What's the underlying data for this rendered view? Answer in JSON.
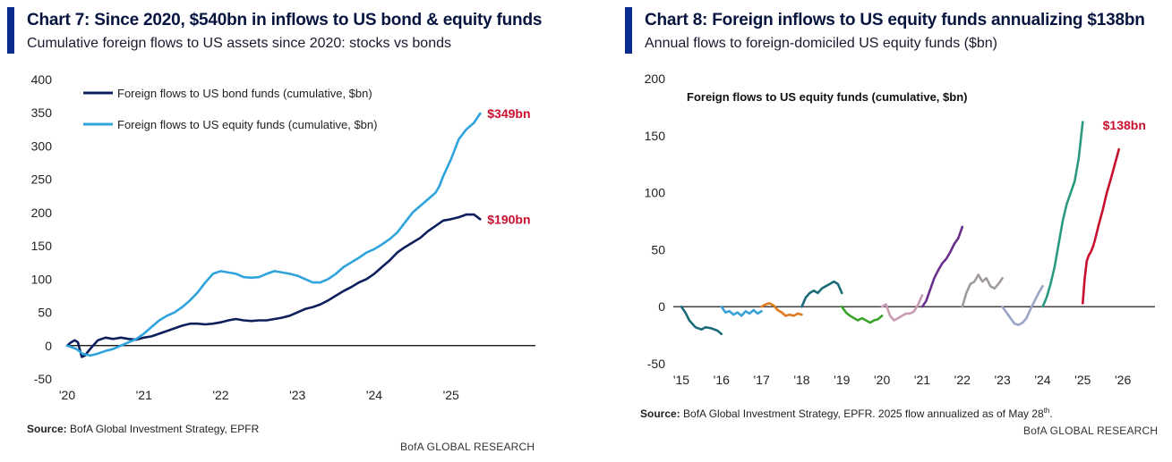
{
  "left": {
    "title": "Chart 7: Since 2020, $540bn in inflows to US bond & equity funds",
    "subtitle": "Cumulative foreign flows to US assets since 2020: stocks vs bonds",
    "source_label": "Source:",
    "source_text": " BofA Global Investment Strategy, EPFR",
    "brand": "BofA GLOBAL RESEARCH",
    "colors": {
      "bond": "#0c1f5c",
      "equity": "#2fa3dc",
      "annotation": "#c8102e",
      "axis": "#000000"
    }
  },
  "right": {
    "title": "Chart 8: Foreign inflows to US equity funds annualizing $138bn",
    "subtitle": "Annual flows to foreign-domiciled US equity funds ($bn)",
    "source_label": "Source:",
    "source_text": " BofA Global Investment Strategy, EPFR. 2025 flow annualized as of May 28",
    "source_sup": "th",
    "source_end": ".",
    "brand": "BofA GLOBAL RESEARCH",
    "colors": {
      "annotation": "#c8102e",
      "axis": "#000000"
    }
  },
  "chart_data": [
    {
      "type": "line",
      "title": "Chart 7: Since 2020, $540bn in inflows to US bond & equity funds",
      "subtitle": "Cumulative foreign flows to US assets since 2020: stocks vs bonds",
      "x_ticks": [
        "'20",
        "'21",
        "'22",
        "'23",
        "'24",
        "'25"
      ],
      "x_tick_values": [
        2020,
        2021,
        2022,
        2023,
        2024,
        2025
      ],
      "xlim": [
        2020,
        2026.1
      ],
      "y_ticks": [
        400,
        350,
        300,
        250,
        200,
        150,
        100,
        50,
        0,
        -50
      ],
      "ylim": [
        -50,
        400
      ],
      "grid": false,
      "legend_position": "top-left",
      "series": [
        {
          "name": "Foreign flows to US bond funds (cumulative, $bn)",
          "color": "#0c1f5c",
          "x": [
            2020.0,
            2020.05,
            2020.1,
            2020.14,
            2020.19,
            2020.23,
            2020.3,
            2020.4,
            2020.5,
            2020.6,
            2020.7,
            2020.8,
            2020.9,
            2021.0,
            2021.1,
            2021.2,
            2021.3,
            2021.4,
            2021.5,
            2021.6,
            2021.7,
            2021.8,
            2021.9,
            2022.0,
            2022.1,
            2022.2,
            2022.3,
            2022.4,
            2022.5,
            2022.6,
            2022.7,
            2022.8,
            2022.9,
            2023.0,
            2023.1,
            2023.2,
            2023.3,
            2023.4,
            2023.5,
            2023.6,
            2023.7,
            2023.8,
            2023.9,
            2024.0,
            2024.1,
            2024.2,
            2024.3,
            2024.4,
            2024.5,
            2024.6,
            2024.7,
            2024.8,
            2024.9,
            2025.0,
            2025.1,
            2025.2,
            2025.3,
            2025.38
          ],
          "y": [
            0,
            5,
            8,
            5,
            -17,
            -15,
            -5,
            8,
            12,
            10,
            12,
            10,
            9,
            12,
            14,
            18,
            22,
            26,
            30,
            33,
            33,
            32,
            33,
            35,
            38,
            40,
            38,
            37,
            38,
            38,
            40,
            42,
            45,
            50,
            55,
            58,
            62,
            68,
            75,
            82,
            88,
            95,
            100,
            108,
            118,
            128,
            140,
            148,
            155,
            162,
            172,
            180,
            188,
            190,
            193,
            197,
            197,
            190
          ]
        },
        {
          "name": "Foreign flows to US equity funds (cumulative, $bn)",
          "color": "#2fa3dc",
          "x": [
            2020.0,
            2020.05,
            2020.12,
            2020.2,
            2020.3,
            2020.4,
            2020.5,
            2020.6,
            2020.7,
            2020.8,
            2020.9,
            2021.0,
            2021.1,
            2021.2,
            2021.3,
            2021.4,
            2021.5,
            2021.6,
            2021.7,
            2021.8,
            2021.9,
            2022.0,
            2022.1,
            2022.2,
            2022.3,
            2022.4,
            2022.5,
            2022.6,
            2022.7,
            2022.8,
            2022.9,
            2023.0,
            2023.1,
            2023.2,
            2023.3,
            2023.4,
            2023.5,
            2023.6,
            2023.7,
            2023.8,
            2023.9,
            2024.0,
            2024.1,
            2024.2,
            2024.3,
            2024.4,
            2024.5,
            2024.6,
            2024.7,
            2024.8,
            2024.85,
            2024.9,
            2025.0,
            2025.1,
            2025.2,
            2025.3,
            2025.38
          ],
          "y": [
            0,
            -2,
            -5,
            -12,
            -15,
            -12,
            -8,
            -5,
            0,
            5,
            10,
            18,
            28,
            38,
            45,
            50,
            58,
            68,
            80,
            95,
            108,
            112,
            110,
            108,
            103,
            102,
            103,
            108,
            112,
            110,
            108,
            105,
            100,
            95,
            95,
            100,
            108,
            118,
            125,
            132,
            140,
            145,
            152,
            160,
            170,
            185,
            200,
            210,
            220,
            230,
            240,
            255,
            280,
            310,
            325,
            335,
            349
          ]
        }
      ],
      "annotations": [
        {
          "text": "$349bn",
          "x": 2025.38,
          "y": 349
        },
        {
          "text": "$190bn",
          "x": 2025.38,
          "y": 190
        }
      ]
    },
    {
      "type": "line",
      "title": "Chart 8: Foreign inflows to US equity funds annualizing $138bn",
      "subtitle": "Annual flows to foreign-domiciled US equity funds ($bn)",
      "inner_label": "Foreign flows to US equity funds (cumulative, $bn)",
      "x_ticks": [
        "'15",
        "'16",
        "'17",
        "'18",
        "'19",
        "'20",
        "'21",
        "'22",
        "'23",
        "'24",
        "'25",
        "'26"
      ],
      "x_tick_values": [
        2015,
        2016,
        2017,
        2018,
        2019,
        2020,
        2021,
        2022,
        2023,
        2024,
        2025,
        2026
      ],
      "xlim": [
        2014.8,
        2026.8
      ],
      "y_ticks": [
        200,
        150,
        100,
        50,
        0,
        -50
      ],
      "ylim": [
        -50,
        200
      ],
      "grid": false,
      "series": [
        {
          "color": "#1b6b7a",
          "x": [
            2015.0,
            2015.1,
            2015.2,
            2015.35,
            2015.5,
            2015.6,
            2015.75,
            2015.9,
            2016.0
          ],
          "y": [
            0,
            -5,
            -12,
            -18,
            -20,
            -18,
            -19,
            -21,
            -24
          ]
        },
        {
          "color": "#3aa0d8",
          "x": [
            2016.0,
            2016.1,
            2016.2,
            2016.3,
            2016.4,
            2016.5,
            2016.6,
            2016.7,
            2016.8,
            2016.9,
            2017.0
          ],
          "y": [
            0,
            -5,
            -4,
            -7,
            -5,
            -8,
            -4,
            -6,
            -3,
            -6,
            -4
          ]
        },
        {
          "color": "#e07a1f",
          "x": [
            2017.0,
            2017.1,
            2017.2,
            2017.3,
            2017.4,
            2017.5,
            2017.6,
            2017.7,
            2017.8,
            2017.9,
            2018.0
          ],
          "y": [
            0,
            2,
            3,
            1,
            -3,
            -5,
            -8,
            -7,
            -8,
            -6,
            -7
          ]
        },
        {
          "color": "#1b6b7a",
          "x": [
            2018.0,
            2018.1,
            2018.2,
            2018.3,
            2018.4,
            2018.5,
            2018.6,
            2018.7,
            2018.8,
            2018.9,
            2019.0
          ],
          "y": [
            0,
            8,
            12,
            14,
            12,
            16,
            18,
            20,
            22,
            20,
            12
          ]
        },
        {
          "color": "#3aa32a",
          "x": [
            2019.0,
            2019.1,
            2019.2,
            2019.3,
            2019.4,
            2019.5,
            2019.6,
            2019.7,
            2019.8,
            2019.9,
            2020.0
          ],
          "y": [
            0,
            -5,
            -8,
            -10,
            -12,
            -10,
            -12,
            -14,
            -12,
            -11,
            -8
          ]
        },
        {
          "color": "#c99bb3",
          "x": [
            2020.0,
            2020.1,
            2020.2,
            2020.3,
            2020.4,
            2020.5,
            2020.6,
            2020.7,
            2020.8,
            2020.9,
            2021.0
          ],
          "y": [
            0,
            2,
            -8,
            -12,
            -10,
            -8,
            -6,
            -6,
            -4,
            2,
            10
          ]
        },
        {
          "color": "#6a2f8c",
          "x": [
            2021.0,
            2021.1,
            2021.2,
            2021.3,
            2021.4,
            2021.5,
            2021.6,
            2021.7,
            2021.8,
            2021.9,
            2022.0
          ],
          "y": [
            0,
            5,
            15,
            25,
            32,
            38,
            42,
            48,
            55,
            60,
            70
          ]
        },
        {
          "color": "#a09a9a",
          "x": [
            2022.0,
            2022.1,
            2022.2,
            2022.3,
            2022.4,
            2022.5,
            2022.6,
            2022.7,
            2022.8,
            2022.9,
            2023.0
          ],
          "y": [
            0,
            12,
            20,
            22,
            28,
            22,
            25,
            18,
            16,
            20,
            25
          ]
        },
        {
          "color": "#9aa3c8",
          "x": [
            2023.0,
            2023.1,
            2023.2,
            2023.3,
            2023.4,
            2023.5,
            2023.6,
            2023.7,
            2023.8,
            2023.9,
            2024.0
          ],
          "y": [
            0,
            -5,
            -10,
            -15,
            -16,
            -14,
            -10,
            -2,
            5,
            12,
            18
          ]
        },
        {
          "color": "#2a9a7f",
          "x": [
            2024.0,
            2024.1,
            2024.2,
            2024.3,
            2024.4,
            2024.5,
            2024.6,
            2024.7,
            2024.8,
            2024.9,
            2025.0
          ],
          "y": [
            0,
            8,
            20,
            35,
            55,
            75,
            90,
            100,
            110,
            130,
            162
          ]
        },
        {
          "color": "#c8102e",
          "x": [
            2025.0,
            2025.05,
            2025.1,
            2025.15,
            2025.2,
            2025.25,
            2025.3,
            2025.4,
            2025.5,
            2025.6,
            2025.7,
            2025.8,
            2025.9
          ],
          "y": [
            3,
            25,
            40,
            45,
            48,
            52,
            58,
            72,
            85,
            100,
            112,
            125,
            138
          ]
        }
      ],
      "annotations": [
        {
          "text": "$138bn",
          "x": 2025.9,
          "y": 138
        }
      ]
    }
  ]
}
